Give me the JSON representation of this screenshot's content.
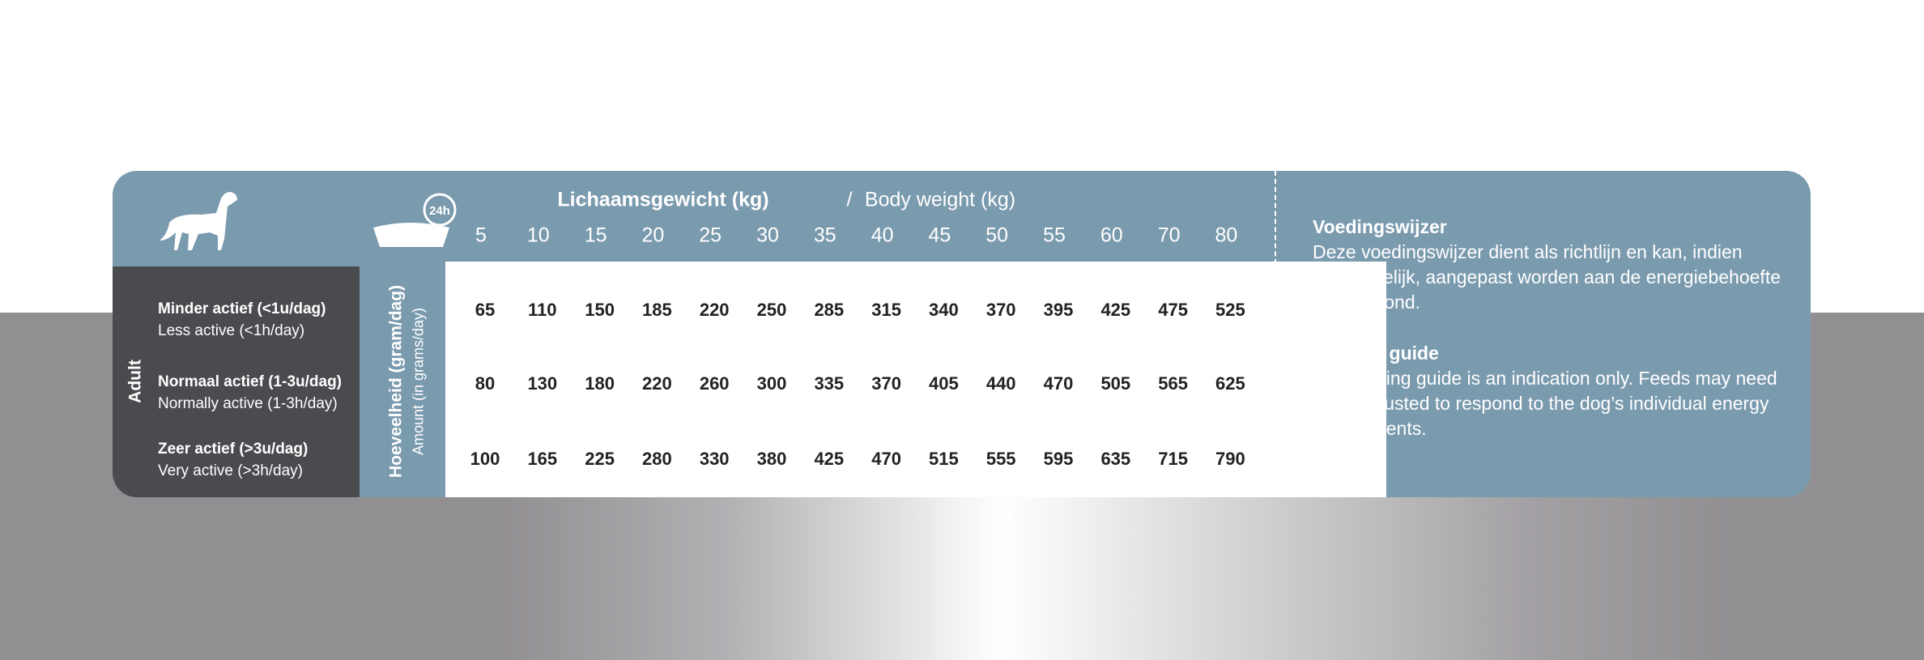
{
  "header": {
    "title_nl": "Lichaamsgewicht (kg)",
    "separator": "/",
    "title_en": "Body weight (kg)"
  },
  "bowl_label": "24h",
  "weights": [
    5,
    10,
    15,
    20,
    25,
    30,
    35,
    40,
    45,
    50,
    55,
    60,
    70,
    80
  ],
  "group": "Adult",
  "amount_label": {
    "nl": "Hoeveelheid (gram/dag)",
    "en": "Amount (in grams/day)"
  },
  "rows": [
    {
      "label_nl": "Minder actief (<1u/dag)",
      "label_en": "Less active (<1h/day)",
      "values": [
        65,
        110,
        150,
        185,
        220,
        250,
        285,
        315,
        340,
        370,
        395,
        425,
        475,
        525
      ]
    },
    {
      "label_nl": "Normaal actief (1-3u/dag)",
      "label_en": "Normally active (1-3h/day)",
      "values": [
        80,
        130,
        180,
        220,
        260,
        300,
        335,
        370,
        405,
        440,
        470,
        505,
        565,
        625
      ]
    },
    {
      "label_nl": "Zeer actief (>3u/dag)",
      "label_en": "Very active (>3h/day)",
      "values": [
        100,
        165,
        225,
        280,
        330,
        380,
        425,
        470,
        515,
        555,
        595,
        635,
        715,
        790
      ]
    }
  ],
  "info": [
    {
      "title": "Voedingswijzer",
      "text": "Deze voedingswijzer dient als richtlijn en kan, indien noodzakelijk, aangepast worden aan de energiebehoefte van de hond."
    },
    {
      "title": "Feeding guide",
      "text": "The feeding guide is an indication only. Feeds may need to be adjusted to respond to the dog’s individual energy requirements."
    }
  ]
}
